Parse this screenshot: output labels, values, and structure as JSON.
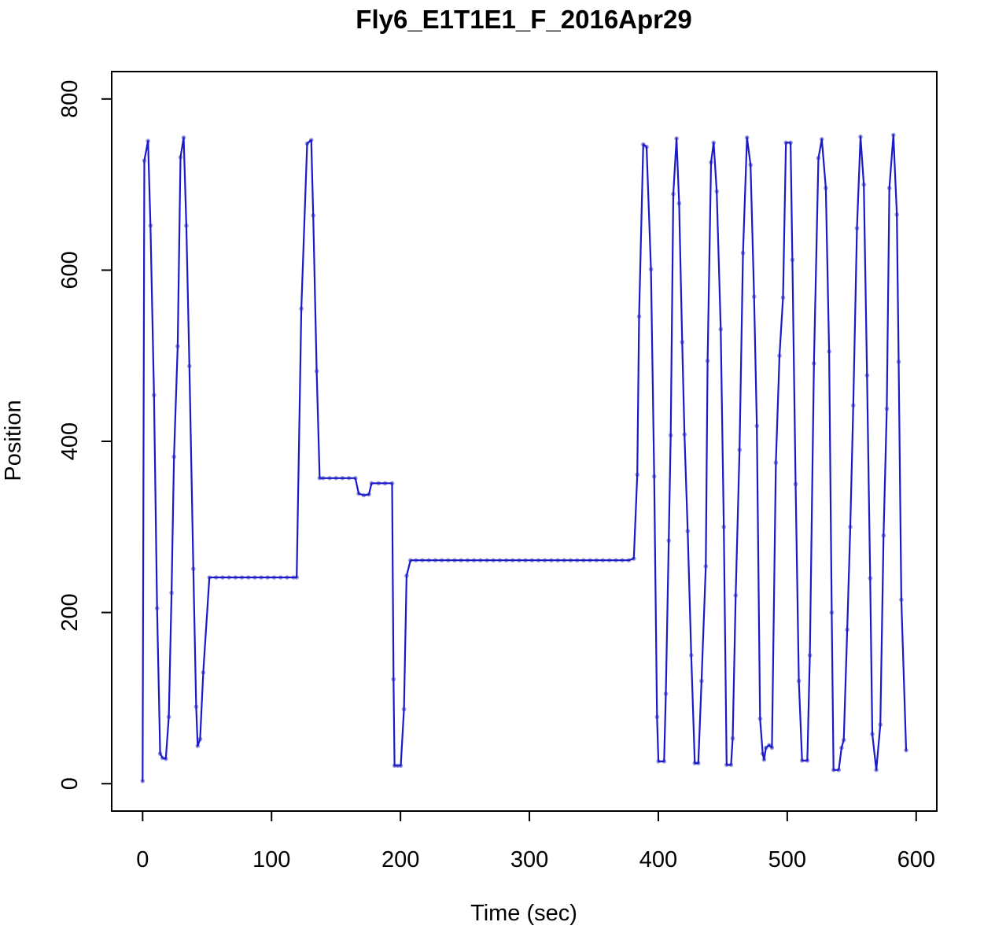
{
  "chart_data": {
    "type": "line",
    "title": "Fly6_E1T1E1_F_2016Apr29",
    "xlabel": "Time (sec)",
    "ylabel": "Position",
    "x_ticks": [
      0,
      100,
      200,
      300,
      400,
      500,
      600
    ],
    "y_ticks": [
      0,
      200,
      400,
      600,
      800
    ],
    "xlim": [
      -24,
      616
    ],
    "ylim": [
      -32,
      832
    ],
    "grid": false,
    "legend": "none",
    "line_color": "#1a1ac8",
    "marker_color": "#9b9bdd",
    "frame_color": "#000000",
    "series": [
      {
        "name": "position",
        "x": [
          0,
          1.3,
          4.2,
          6.1,
          8.8,
          11.2,
          13.6,
          15.5,
          18,
          20.3,
          22.4,
          24.3,
          27.2,
          29.4,
          31.8,
          33.9,
          36.3,
          39.3,
          41.5,
          42.7,
          44.6,
          47,
          51.8,
          57,
          62,
          67,
          72,
          77,
          82,
          87,
          92,
          97,
          102,
          107,
          112,
          117,
          119.5,
          123.1,
          127.6,
          130.8,
          132.3,
          135,
          137.3,
          140,
          145,
          150,
          155,
          160,
          165,
          167.6,
          171.5,
          175.5,
          177.6,
          183,
          188,
          193.5,
          194.6,
          195.4,
          197.8,
          200.2,
          202.7,
          204.7,
          207.8,
          212,
          217,
          222,
          227,
          232,
          237,
          242,
          247,
          252,
          257,
          262,
          267,
          272,
          277,
          282,
          287,
          292,
          297,
          302,
          307,
          312,
          317,
          322,
          327,
          332,
          337,
          342,
          347,
          352,
          357,
          362,
          367,
          372,
          377,
          381,
          383.7,
          385.1,
          388.3,
          390.9,
          394.3,
          396.8,
          399,
          400.1,
          404.5,
          405.8,
          408.1,
          409.6,
          411.6,
          414.1,
          416.1,
          418.5,
          420.3,
          422.8,
          425.5,
          428.3,
          431,
          433.5,
          436.8,
          438.2,
          440.9,
          442.9,
          445.3,
          448.4,
          450.8,
          453,
          456.4,
          457.7,
          460,
          463,
          465.7,
          468.8,
          471.5,
          474.3,
          476.4,
          478.9,
          481,
          482,
          483.5,
          486,
          488.1,
          491.2,
          494,
          496.7,
          499,
          502.6,
          504,
          506.5,
          509,
          511.5,
          515.6,
          517.5,
          520.7,
          524.2,
          526.8,
          529.9,
          532.5,
          534.5,
          535.9,
          539.9,
          542.1,
          543.8,
          546.5,
          548.9,
          551.2,
          554.1,
          556.8,
          559.4,
          561.9,
          564.3,
          566,
          569.1,
          572.2,
          574.7,
          577.2,
          579.2,
          582.3,
          585,
          586.4,
          588.5,
          592.2
        ],
        "y": [
          3,
          728,
          751,
          652,
          454,
          205,
          35,
          30,
          29,
          78,
          223,
          382,
          511,
          732,
          755,
          652,
          488,
          251,
          90,
          44,
          52,
          130,
          241,
          241,
          241,
          241,
          241,
          241,
          241,
          241,
          241,
          241,
          241,
          241,
          241,
          241,
          241,
          555,
          748,
          752,
          664,
          482,
          357,
          357,
          357,
          357,
          357,
          357,
          357,
          339,
          337,
          338,
          351,
          351,
          351,
          351,
          122,
          21,
          21,
          21,
          87,
          243,
          261,
          261,
          261,
          261,
          261,
          261,
          261,
          261,
          261,
          261,
          261,
          261,
          261,
          261,
          261,
          261,
          261,
          261,
          261,
          261,
          261,
          261,
          261,
          261,
          261,
          261,
          261,
          261,
          261,
          261,
          261,
          261,
          261,
          261,
          261,
          263,
          361,
          546,
          747,
          744,
          601,
          359,
          78,
          26,
          26,
          105,
          284,
          407,
          689,
          754,
          678,
          516,
          408,
          295,
          150,
          24,
          24,
          120,
          254,
          494,
          726,
          749,
          692,
          531,
          300,
          22,
          22,
          53,
          220,
          390,
          620,
          755,
          723,
          569,
          418,
          76,
          35,
          28,
          42,
          45,
          42,
          375,
          500,
          568,
          749,
          749,
          612,
          350,
          120,
          27,
          27,
          150,
          491,
          731,
          753,
          696,
          505,
          200,
          16,
          16,
          42,
          51,
          180,
          300,
          442,
          649,
          756,
          700,
          477,
          240,
          58,
          16,
          69,
          290,
          438,
          696,
          758,
          665,
          493,
          215,
          39
        ]
      }
    ]
  }
}
